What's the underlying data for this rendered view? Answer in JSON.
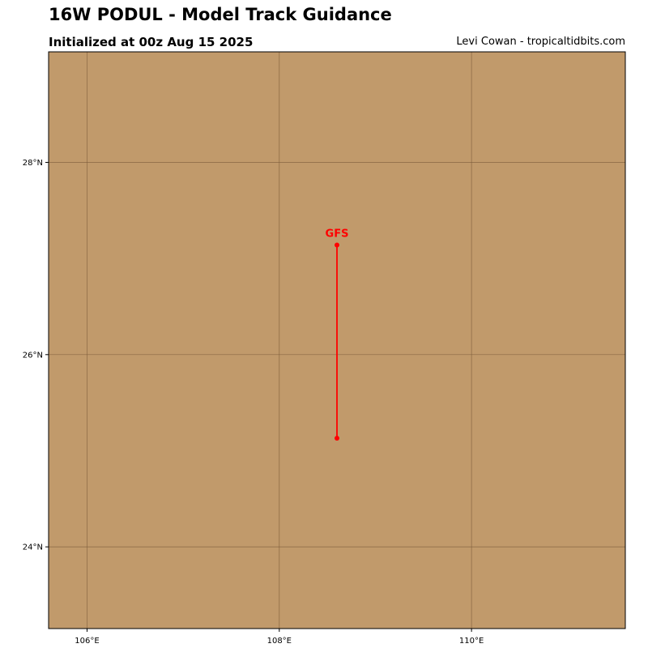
{
  "header": {
    "title": "16W PODUL - Model Track Guidance",
    "subtitle": "Initialized at 00z Aug 15 2025",
    "credit": "Levi Cowan - tropicaltidbits.com"
  },
  "map": {
    "land_color": "#c19a6b",
    "grid_color": "#7a5a3a",
    "lon_range": [
      105.6,
      111.6
    ],
    "lat_range": [
      23.15,
      29.15
    ],
    "lon_ticks": [
      {
        "value": 106,
        "label": "106°E"
      },
      {
        "value": 108,
        "label": "108°E"
      },
      {
        "value": 110,
        "label": "110°E"
      }
    ],
    "lat_ticks": [
      {
        "value": 24,
        "label": "24°N"
      },
      {
        "value": 26,
        "label": "26°N"
      },
      {
        "value": 28,
        "label": "28°N"
      }
    ],
    "tracks": [
      {
        "name": "GFS",
        "color": "#ff0000",
        "points": [
          [
            108.6,
            25.13
          ],
          [
            108.6,
            27.14
          ]
        ]
      }
    ]
  }
}
